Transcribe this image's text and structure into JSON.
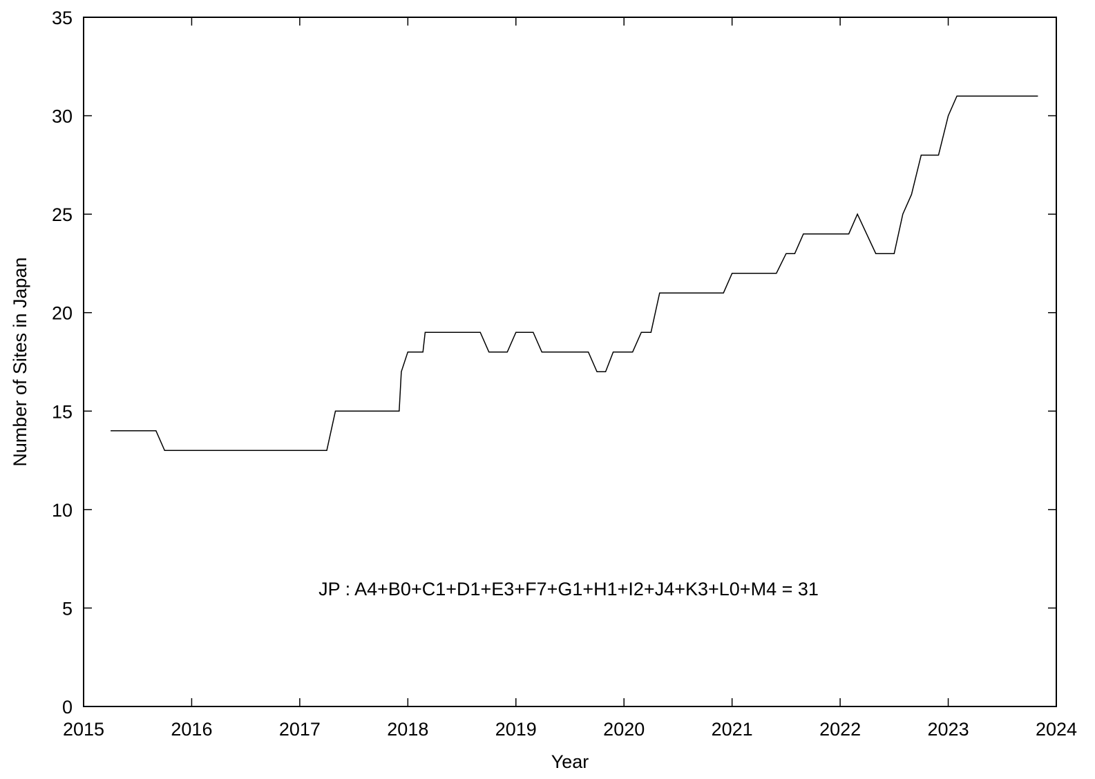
{
  "chart_data": {
    "type": "line",
    "title": "",
    "xlabel": "Year",
    "ylabel": "Number of Sites in Japan",
    "xlim": [
      2015,
      2024
    ],
    "ylim": [
      0,
      35
    ],
    "xticks": [
      "2015",
      "2016",
      "2017",
      "2018",
      "2019",
      "2020",
      "2021",
      "2022",
      "2023",
      "2024"
    ],
    "yticks": [
      "0",
      "5",
      "10",
      "15",
      "20",
      "25",
      "30",
      "35"
    ],
    "grid": false,
    "annotation": "JP : A4+B0+C1+D1+E3+F7+G1+H1+I2+J4+K3+L0+M4 = 31",
    "series": [
      {
        "color": "#000000",
        "points": [
          [
            2015.25,
            14
          ],
          [
            2015.67,
            14
          ],
          [
            2015.75,
            13
          ],
          [
            2017.25,
            13
          ],
          [
            2017.33,
            15
          ],
          [
            2017.92,
            15
          ],
          [
            2017.94,
            17
          ],
          [
            2018.0,
            18
          ],
          [
            2018.14,
            18
          ],
          [
            2018.16,
            19
          ],
          [
            2018.67,
            19
          ],
          [
            2018.75,
            18
          ],
          [
            2018.92,
            18
          ],
          [
            2019.0,
            19
          ],
          [
            2019.16,
            19
          ],
          [
            2019.24,
            18
          ],
          [
            2019.67,
            18
          ],
          [
            2019.75,
            17
          ],
          [
            2019.83,
            17
          ],
          [
            2019.9,
            18
          ],
          [
            2020.08,
            18
          ],
          [
            2020.16,
            19
          ],
          [
            2020.25,
            19
          ],
          [
            2020.33,
            21
          ],
          [
            2020.92,
            21
          ],
          [
            2021.0,
            22
          ],
          [
            2021.41,
            22
          ],
          [
            2021.5,
            23
          ],
          [
            2021.58,
            23
          ],
          [
            2021.66,
            24
          ],
          [
            2022.08,
            24
          ],
          [
            2022.16,
            25
          ],
          [
            2022.33,
            23
          ],
          [
            2022.5,
            23
          ],
          [
            2022.58,
            25
          ],
          [
            2022.66,
            26
          ],
          [
            2022.75,
            28
          ],
          [
            2022.91,
            28
          ],
          [
            2023.0,
            30
          ],
          [
            2023.08,
            31
          ],
          [
            2023.83,
            31
          ]
        ]
      }
    ]
  }
}
